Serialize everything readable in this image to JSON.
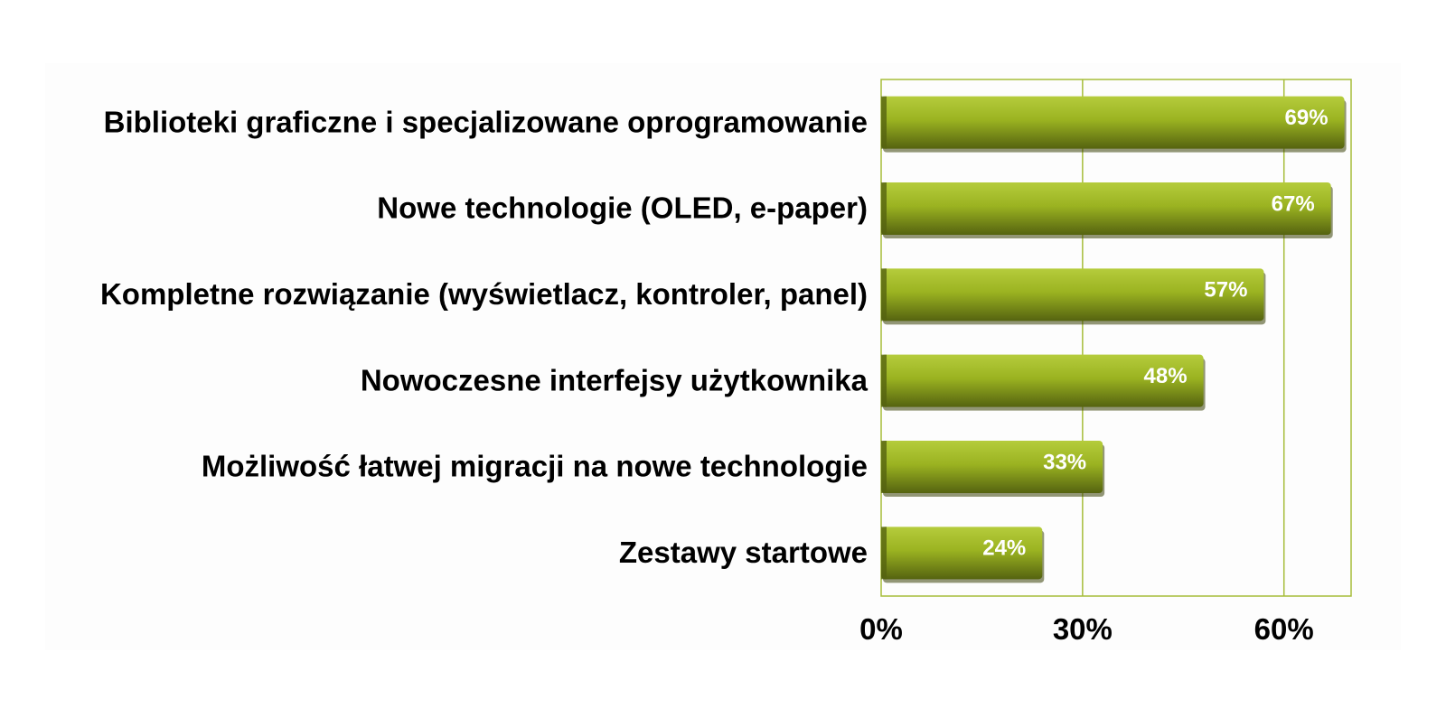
{
  "chart_data": {
    "type": "bar",
    "orientation": "horizontal",
    "categories": [
      "Biblioteki graficzne i specjalizowane oprogramowanie",
      "Nowe technologie (OLED, e-paper)",
      "Kompletne rozwiązanie (wyświetlacz, kontroler, panel)",
      "Nowoczesne interfejsy użytkownika",
      "Możliwość łatwej migracji na nowe technologie",
      "Zestawy startowe"
    ],
    "values": [
      69,
      67,
      57,
      48,
      33,
      24
    ],
    "data_labels": [
      "69%",
      "67%",
      "57%",
      "48%",
      "33%",
      "24%"
    ],
    "xlim": [
      0,
      70
    ],
    "xticks": [
      0,
      30,
      60
    ],
    "xtick_labels": [
      "0%",
      "30%",
      "60%"
    ],
    "grid": true,
    "legend": "none",
    "colors": {
      "bar": "#9bb321",
      "bar_light": "#b5cc3c",
      "bar_dark": "#556310",
      "grid": "#a6bd3a",
      "plot_border": "#a6bd3a"
    }
  }
}
